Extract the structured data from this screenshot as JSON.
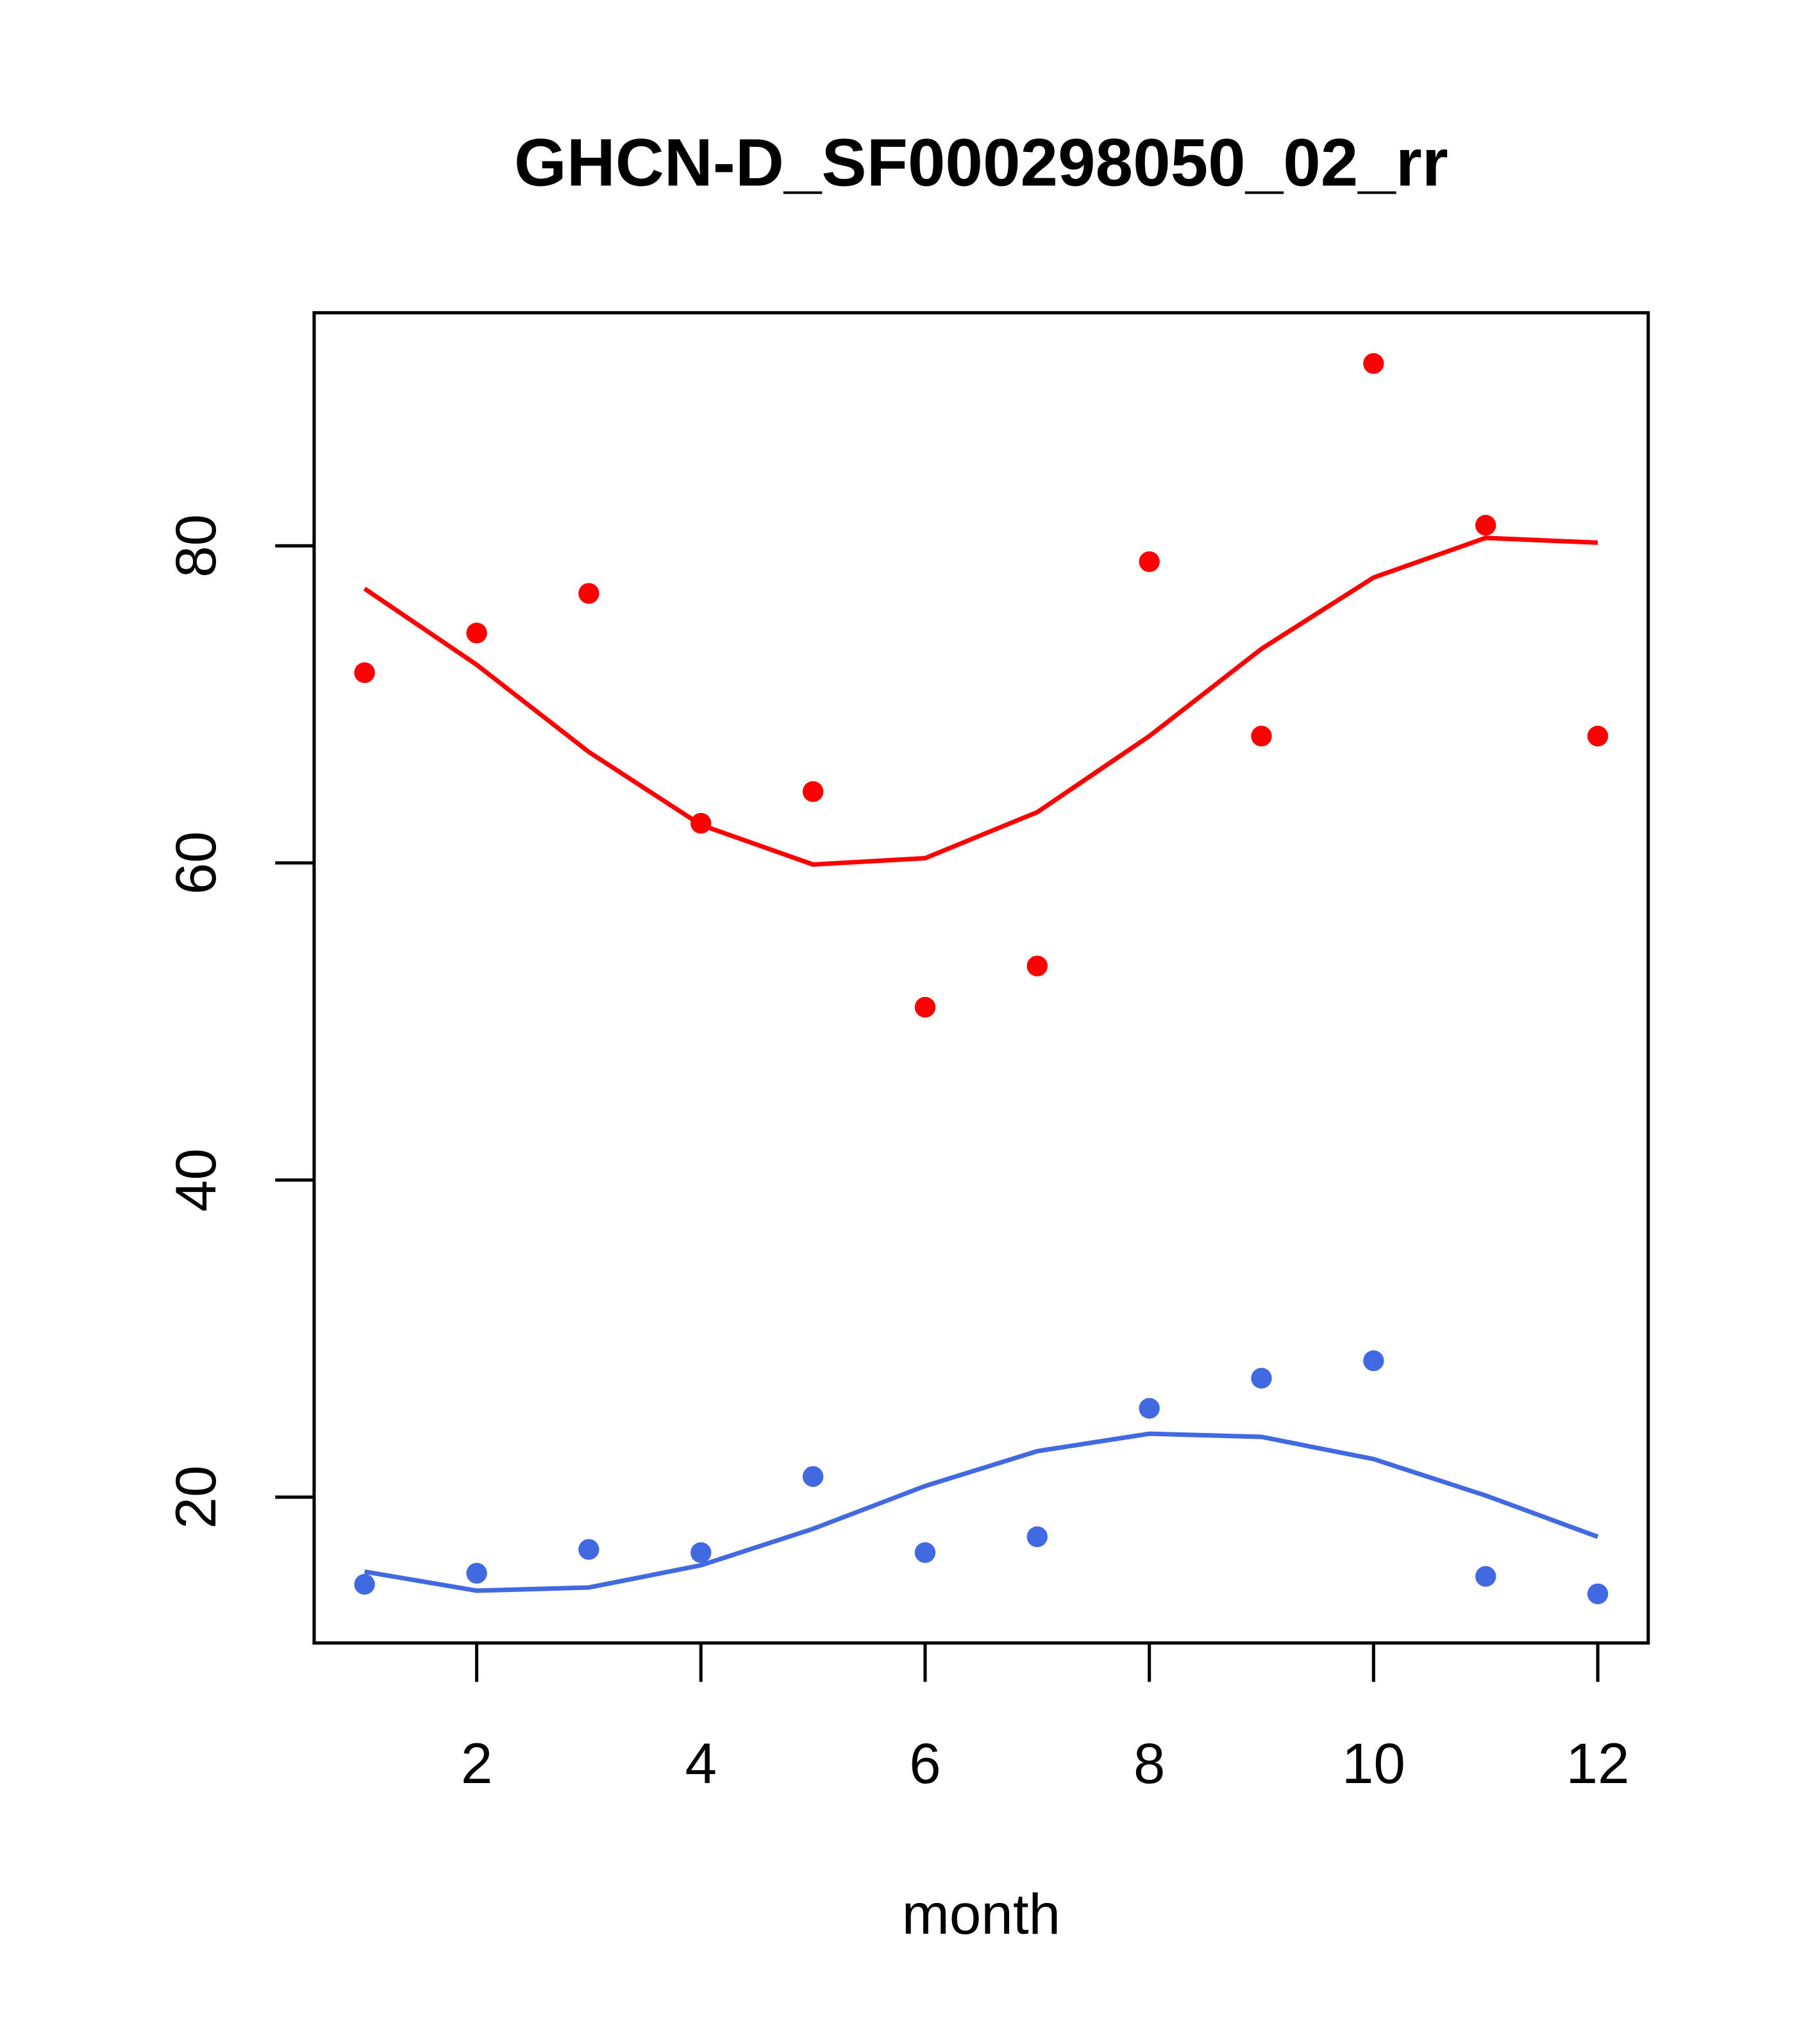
{
  "chart_data": {
    "type": "scatter",
    "title": "GHCN-D_SF000298050_02_rr",
    "xlabel": "month",
    "ylabel": "",
    "xlim": [
      0.55,
      12.45
    ],
    "ylim": [
      10.8,
      94.7
    ],
    "xticks": [
      2,
      4,
      6,
      8,
      10,
      12
    ],
    "yticks": [
      20,
      40,
      60,
      80
    ],
    "grid": false,
    "x": [
      1,
      2,
      3,
      4,
      5,
      6,
      7,
      8,
      9,
      10,
      11,
      12
    ],
    "series": [
      {
        "name": "red points",
        "kind": "points",
        "color": "#ff0000",
        "values": [
          72.0,
          74.5,
          77.0,
          62.5,
          64.5,
          50.9,
          53.5,
          79.0,
          68.0,
          91.5,
          81.3,
          68.0
        ]
      },
      {
        "name": "red line",
        "kind": "line",
        "color": "#ff0000",
        "values": [
          77.3,
          72.5,
          67.0,
          62.4,
          59.9,
          60.3,
          63.2,
          68.0,
          73.5,
          78.0,
          80.5,
          80.2
        ]
      },
      {
        "name": "blue points",
        "kind": "points",
        "color": "#4169e1",
        "values": [
          14.5,
          15.2,
          16.7,
          16.5,
          21.3,
          16.5,
          17.5,
          25.6,
          27.5,
          28.6,
          15.0,
          13.9
        ]
      },
      {
        "name": "blue line",
        "kind": "line",
        "color": "#4169e1",
        "values": [
          15.3,
          14.1,
          14.3,
          15.7,
          18.0,
          20.7,
          22.9,
          24.0,
          23.8,
          22.4,
          20.1,
          17.5
        ]
      }
    ]
  }
}
